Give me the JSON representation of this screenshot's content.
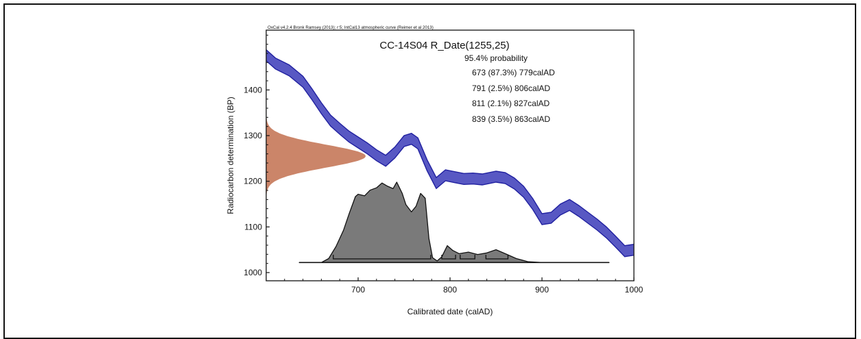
{
  "chart_data": {
    "type": "area",
    "software_line": "OxCal v4.2.4 Bronk Ramsey (2013); r:5; IntCal13 atmospheric curve (Reimer et al 2013)",
    "title": "CC-14S04 R_Date(1255,25)",
    "probability_heading": "95.4% probability",
    "ranges": [
      {
        "label": "673 (87.3%) 779calAD",
        "from": 673,
        "to": 779,
        "percent": 87.3
      },
      {
        "label": "791 (2.5%) 806calAD",
        "from": 791,
        "to": 806,
        "percent": 2.5
      },
      {
        "label": "811 (2.1%) 827calAD",
        "from": 811,
        "to": 827,
        "percent": 2.1
      },
      {
        "label": "839 (3.5%) 863calAD",
        "from": 839,
        "to": 863,
        "percent": 3.5
      }
    ],
    "xlabel": "Calibrated date (calAD)",
    "ylabel": "Radiocarbon determination (BP)",
    "xlim": [
      600,
      1000
    ],
    "ylim": [
      982,
      1531
    ],
    "xticks": [
      700,
      800,
      900,
      1000
    ],
    "yticks": [
      1000,
      1100,
      1200,
      1300,
      1400
    ],
    "colors": {
      "calibration_curve": "#3b3bb8",
      "calibration_edge": "#2020a0",
      "radiocarbon_date": "#c77b5c",
      "calibrated_distribution": "#7a7a7a"
    },
    "radiocarbon_measurement": {
      "mean_bp": 1255,
      "sigma": 25
    },
    "calibration_curve": [
      {
        "x": 600,
        "mid": 1476
      },
      {
        "x": 610,
        "mid": 1458
      },
      {
        "x": 625,
        "mid": 1443
      },
      {
        "x": 640,
        "mid": 1418
      },
      {
        "x": 650,
        "mid": 1390
      },
      {
        "x": 660,
        "mid": 1360
      },
      {
        "x": 670,
        "mid": 1333
      },
      {
        "x": 680,
        "mid": 1315
      },
      {
        "x": 690,
        "mid": 1298
      },
      {
        "x": 700,
        "mid": 1285
      },
      {
        "x": 710,
        "mid": 1272
      },
      {
        "x": 720,
        "mid": 1257
      },
      {
        "x": 730,
        "mid": 1245
      },
      {
        "x": 740,
        "mid": 1263
      },
      {
        "x": 750,
        "mid": 1288
      },
      {
        "x": 758,
        "mid": 1293
      },
      {
        "x": 765,
        "mid": 1283
      },
      {
        "x": 775,
        "mid": 1235
      },
      {
        "x": 785,
        "mid": 1196
      },
      {
        "x": 795,
        "mid": 1213
      },
      {
        "x": 805,
        "mid": 1209
      },
      {
        "x": 815,
        "mid": 1205
      },
      {
        "x": 825,
        "mid": 1206
      },
      {
        "x": 835,
        "mid": 1204
      },
      {
        "x": 850,
        "mid": 1210
      },
      {
        "x": 860,
        "mid": 1207
      },
      {
        "x": 870,
        "mid": 1195
      },
      {
        "x": 880,
        "mid": 1177
      },
      {
        "x": 890,
        "mid": 1150
      },
      {
        "x": 900,
        "mid": 1117
      },
      {
        "x": 910,
        "mid": 1120
      },
      {
        "x": 920,
        "mid": 1138
      },
      {
        "x": 930,
        "mid": 1148
      },
      {
        "x": 940,
        "mid": 1135
      },
      {
        "x": 950,
        "mid": 1120
      },
      {
        "x": 960,
        "mid": 1105
      },
      {
        "x": 970,
        "mid": 1088
      },
      {
        "x": 980,
        "mid": 1068
      },
      {
        "x": 990,
        "mid": 1047
      },
      {
        "x": 1000,
        "mid": 1050
      }
    ],
    "calibration_band_halfwidth": 12,
    "calibrated_distribution": [
      {
        "x": 636,
        "p": 0
      },
      {
        "x": 660,
        "p": 0
      },
      {
        "x": 668,
        "p": 0.05
      },
      {
        "x": 676,
        "p": 0.2
      },
      {
        "x": 684,
        "p": 0.4
      },
      {
        "x": 690,
        "p": 0.6
      },
      {
        "x": 697,
        "p": 0.82
      },
      {
        "x": 700,
        "p": 0.85
      },
      {
        "x": 707,
        "p": 0.83
      },
      {
        "x": 713,
        "p": 0.9
      },
      {
        "x": 720,
        "p": 0.93
      },
      {
        "x": 726,
        "p": 0.99
      },
      {
        "x": 732,
        "p": 0.95
      },
      {
        "x": 738,
        "p": 0.92
      },
      {
        "x": 742,
        "p": 1.0
      },
      {
        "x": 748,
        "p": 0.86
      },
      {
        "x": 752,
        "p": 0.72
      },
      {
        "x": 758,
        "p": 0.63
      },
      {
        "x": 763,
        "p": 0.7
      },
      {
        "x": 768,
        "p": 0.86
      },
      {
        "x": 773,
        "p": 0.8
      },
      {
        "x": 777,
        "p": 0.3
      },
      {
        "x": 781,
        "p": 0.06
      },
      {
        "x": 786,
        "p": 0.02
      },
      {
        "x": 791,
        "p": 0.07
      },
      {
        "x": 797,
        "p": 0.21
      },
      {
        "x": 803,
        "p": 0.15
      },
      {
        "x": 810,
        "p": 0.11
      },
      {
        "x": 820,
        "p": 0.13
      },
      {
        "x": 830,
        "p": 0.1
      },
      {
        "x": 840,
        "p": 0.12
      },
      {
        "x": 850,
        "p": 0.16
      },
      {
        "x": 860,
        "p": 0.11
      },
      {
        "x": 872,
        "p": 0.05
      },
      {
        "x": 885,
        "p": 0.01
      },
      {
        "x": 900,
        "p": 0
      },
      {
        "x": 973,
        "p": 0
      }
    ]
  }
}
